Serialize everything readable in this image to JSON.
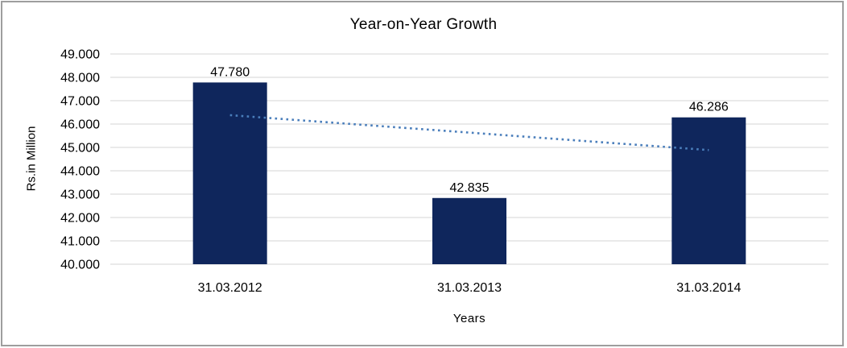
{
  "window": {
    "background_color": "#ffffff",
    "border_color": "#9e9e9e"
  },
  "chart_data": {
    "type": "bar",
    "title": "Year-on-Year Growth",
    "xlabel": "Years",
    "ylabel": "Rs.in Million",
    "categories": [
      "31.03.2012",
      "31.03.2013",
      "31.03.2014"
    ],
    "values": [
      47780,
      42835,
      46286
    ],
    "value_labels": [
      "47.780",
      "42.835",
      "46.286"
    ],
    "ylim": [
      40000,
      49000
    ],
    "ytick_step": 1000,
    "ytick_labels_top_to_bottom": [
      "49.000",
      "48.000",
      "47.000",
      "46.000",
      "45.000",
      "44.000",
      "43.000",
      "42.000",
      "41.000",
      "40.000"
    ],
    "grid": "horizontal",
    "legend": "none",
    "colors": {
      "bar": "#0f265c",
      "gridline": "#d6d6d6",
      "trendline": "#4a7ebb",
      "text": "#000000"
    },
    "trendline": {
      "kind": "linear",
      "style": "dotted",
      "color": "#4a7ebb",
      "start_value": 46381,
      "end_value": 44887
    }
  }
}
